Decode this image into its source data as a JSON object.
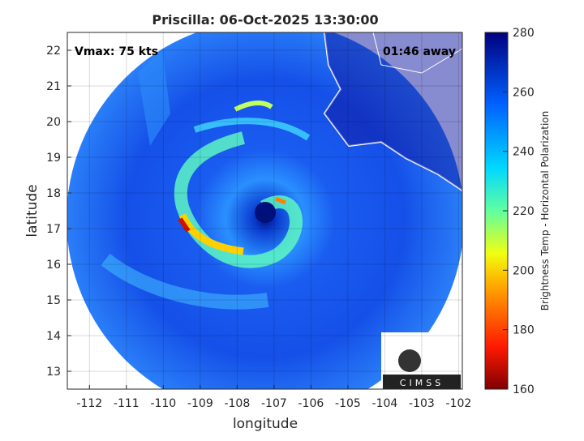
{
  "title": "Priscilla: 06-Oct-2025 13:30:00",
  "annotations": {
    "vmax": "Vmax: 75 kts",
    "time_away": "01:46 away"
  },
  "x_axis": {
    "label": "longitude",
    "lim": [
      -112.6,
      -101.9
    ],
    "ticks": [
      -112,
      -111,
      -110,
      -109,
      -108,
      -107,
      -106,
      -105,
      -104,
      -103,
      -102
    ]
  },
  "y_axis": {
    "label": "latitude",
    "lim": [
      12.5,
      22.5
    ],
    "ticks": [
      13,
      14,
      15,
      16,
      17,
      18,
      19,
      20,
      21,
      22
    ]
  },
  "colorbar": {
    "label": "Brightness Temp - Horizontal Polarization",
    "lim": [
      160,
      280
    ],
    "ticks": [
      160,
      180,
      200,
      220,
      240,
      260,
      280
    ]
  },
  "logo": "CIMSS"
}
